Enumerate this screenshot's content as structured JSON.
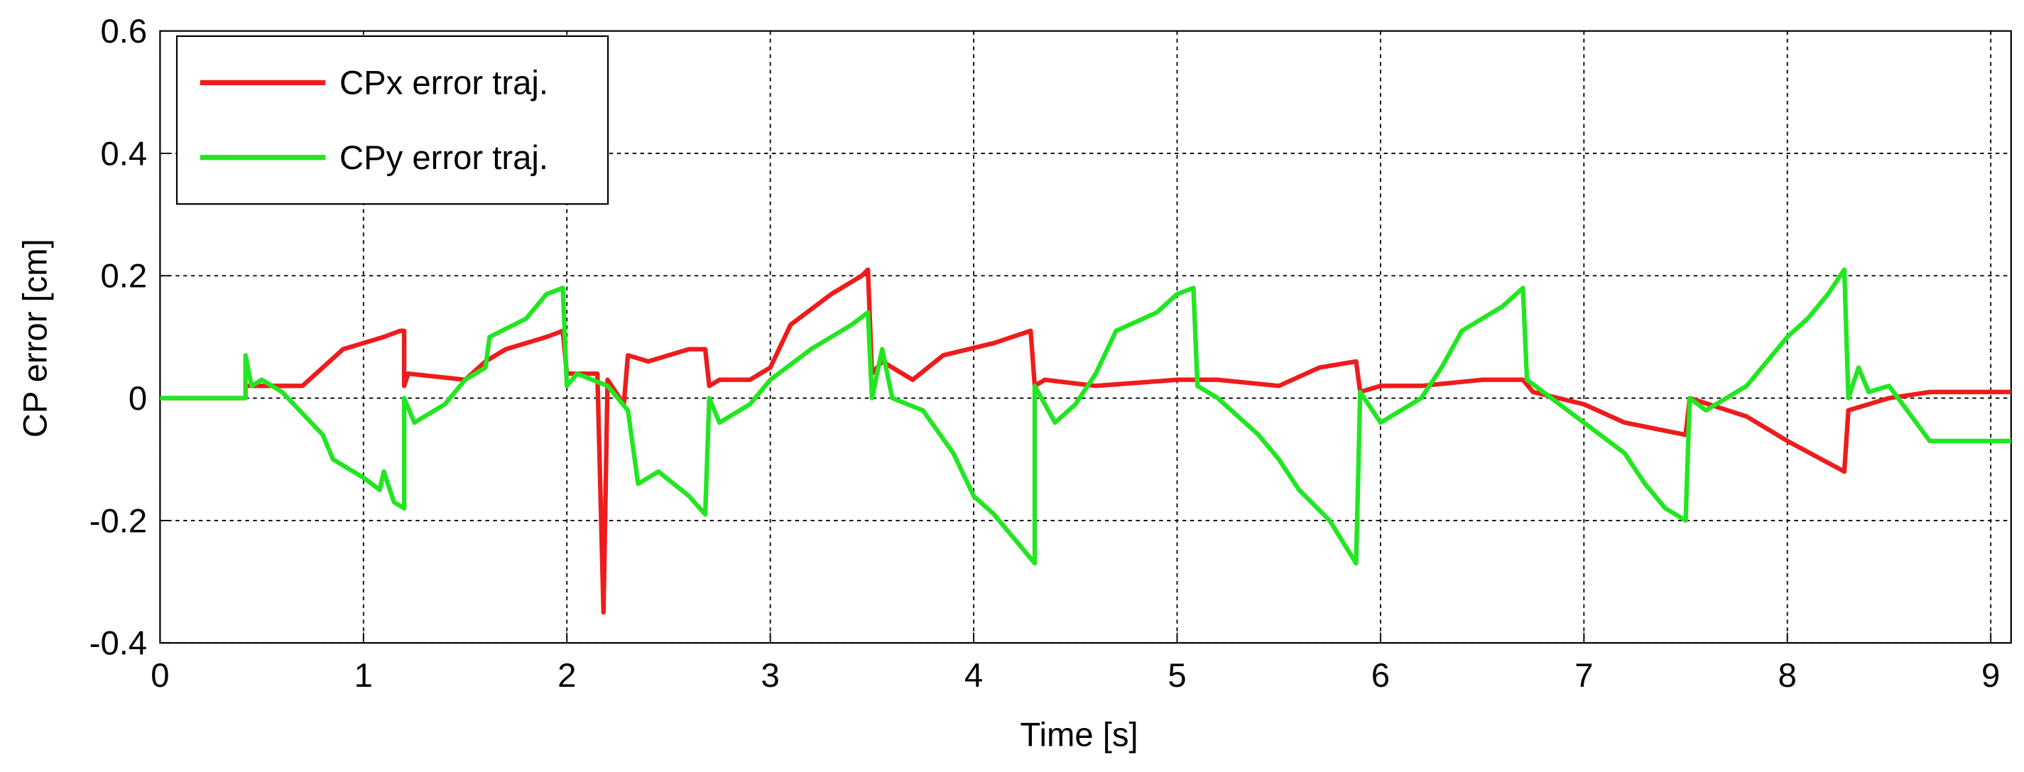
{
  "chart_data": {
    "type": "line",
    "x_label": "Time [s]",
    "y_label": "CP error [cm]",
    "xlim": [
      0,
      9.1
    ],
    "ylim": [
      -0.4,
      0.6
    ],
    "xticks": [
      0,
      1,
      2,
      3,
      4,
      5,
      6,
      7,
      8,
      9
    ],
    "yticks": [
      -0.4,
      -0.2,
      0,
      0.2,
      0.4,
      0.6
    ],
    "grid": true,
    "legend": "upper left",
    "series": [
      {
        "name": "CPx error traj.",
        "color": "#ee1c1c",
        "x": [
          0,
          0.42,
          0.42,
          0.7,
          0.8,
          0.9,
          1.1,
          1.18,
          1.2,
          1.2,
          1.22,
          1.5,
          1.6,
          1.7,
          1.9,
          1.98,
          2.0,
          2.15,
          2.18,
          2.2,
          2.28,
          2.3,
          2.4,
          2.6,
          2.68,
          2.7,
          2.75,
          2.9,
          3.0,
          3.1,
          3.3,
          3.45,
          3.48,
          3.5,
          3.55,
          3.7,
          3.85,
          4.1,
          4.28,
          4.3,
          4.35,
          4.6,
          5.0,
          5.2,
          5.5,
          5.7,
          5.88,
          5.9,
          6.0,
          6.2,
          6.5,
          6.7,
          6.75,
          7.0,
          7.2,
          7.5,
          7.52,
          7.8,
          8.0,
          8.28,
          8.3,
          8.5,
          8.7,
          9.1
        ],
        "values": [
          0,
          0,
          0.02,
          0.02,
          0.05,
          0.08,
          0.1,
          0.11,
          0.11,
          0.02,
          0.04,
          0.03,
          0.06,
          0.08,
          0.1,
          0.11,
          0.04,
          0.04,
          -0.35,
          0.03,
          -0.01,
          0.07,
          0.06,
          0.08,
          0.08,
          0.02,
          0.03,
          0.03,
          0.05,
          0.12,
          0.17,
          0.2,
          0.21,
          0.04,
          0.06,
          0.03,
          0.07,
          0.09,
          0.11,
          0.02,
          0.03,
          0.02,
          0.03,
          0.03,
          0.02,
          0.05,
          0.06,
          0.01,
          0.02,
          0.02,
          0.03,
          0.03,
          0.01,
          -0.01,
          -0.04,
          -0.06,
          0,
          -0.03,
          -0.07,
          -0.12,
          -0.02,
          0,
          0.01,
          0.01
        ]
      },
      {
        "name": "CPy error traj.",
        "color": "#22e622",
        "x": [
          0,
          0.42,
          0.42,
          0.45,
          0.5,
          0.6,
          0.8,
          0.85,
          1.0,
          1.08,
          1.1,
          1.15,
          1.2,
          1.2,
          1.25,
          1.4,
          1.5,
          1.6,
          1.62,
          1.8,
          1.9,
          1.98,
          2.0,
          2.05,
          2.2,
          2.3,
          2.35,
          2.45,
          2.6,
          2.68,
          2.7,
          2.75,
          2.9,
          3.0,
          3.2,
          3.4,
          3.48,
          3.5,
          3.55,
          3.6,
          3.75,
          3.9,
          4.0,
          4.1,
          4.2,
          4.3,
          4.3,
          4.4,
          4.5,
          4.6,
          4.7,
          4.9,
          5.0,
          5.08,
          5.1,
          5.2,
          5.4,
          5.5,
          5.6,
          5.75,
          5.88,
          5.9,
          6.0,
          6.2,
          6.3,
          6.4,
          6.6,
          6.7,
          6.72,
          6.8,
          7.0,
          7.2,
          7.3,
          7.4,
          7.5,
          7.52,
          7.6,
          7.8,
          8.0,
          8.1,
          8.2,
          8.28,
          8.3,
          8.35,
          8.4,
          8.5,
          8.7,
          9.1
        ],
        "values": [
          0,
          0,
          0.07,
          0.02,
          0.03,
          0.01,
          -0.06,
          -0.1,
          -0.13,
          -0.15,
          -0.12,
          -0.17,
          -0.18,
          0,
          -0.04,
          -0.01,
          0.03,
          0.05,
          0.1,
          0.13,
          0.17,
          0.18,
          0.02,
          0.04,
          0.02,
          -0.02,
          -0.14,
          -0.12,
          -0.16,
          -0.19,
          0,
          -0.04,
          -0.01,
          0.03,
          0.08,
          0.12,
          0.14,
          0,
          0.08,
          0,
          -0.02,
          -0.09,
          -0.16,
          -0.19,
          -0.23,
          -0.27,
          0.02,
          -0.04,
          -0.01,
          0.04,
          0.11,
          0.14,
          0.17,
          0.18,
          0.02,
          0,
          -0.06,
          -0.1,
          -0.15,
          -0.2,
          -0.27,
          0.01,
          -0.04,
          0,
          0.05,
          0.11,
          0.15,
          0.18,
          0.03,
          0.01,
          -0.04,
          -0.09,
          -0.14,
          -0.18,
          -0.2,
          0,
          -0.02,
          0.02,
          0.1,
          0.13,
          0.17,
          0.21,
          0,
          0.05,
          0.01,
          0.02,
          -0.07,
          -0.07
        ]
      }
    ]
  }
}
